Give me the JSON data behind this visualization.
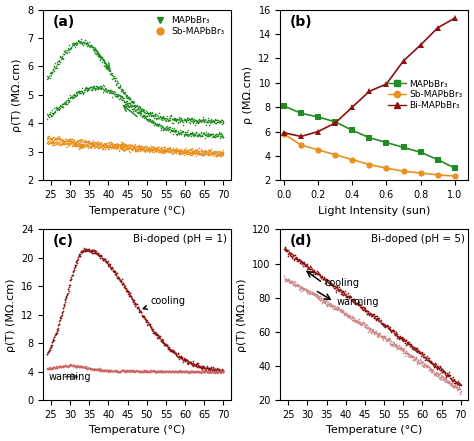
{
  "fig_width": 4.74,
  "fig_height": 4.41,
  "dpi": 100,
  "background": "#ffffff",
  "panel_a": {
    "label": "(a)",
    "xlabel": "Temperature (°C)",
    "ylabel": "ρ(T) (MΩ.cm)",
    "xlim": [
      23,
      72
    ],
    "ylim": [
      2,
      8
    ],
    "yticks": [
      2,
      3,
      4,
      5,
      6,
      7,
      8
    ],
    "xticks": [
      25,
      30,
      35,
      40,
      45,
      50,
      55,
      60,
      65,
      70
    ],
    "green_color": "#228B22",
    "orange_color": "#E89020",
    "legend_labels": [
      "MAPbBr₃",
      "Sb-MAPbBr₃"
    ]
  },
  "panel_b": {
    "label": "(b)",
    "xlabel": "Light Intensity (sun)",
    "ylabel": "ρ (MΩ.cm)",
    "xlim": [
      -0.02,
      1.08
    ],
    "ylim": [
      2,
      16
    ],
    "yticks": [
      2,
      4,
      6,
      8,
      10,
      12,
      14,
      16
    ],
    "xticks": [
      0.0,
      0.2,
      0.4,
      0.6,
      0.8,
      1.0
    ],
    "green_color": "#228B22",
    "orange_color": "#E89020",
    "darkred_color": "#8B1010",
    "legend_labels": [
      "MAPbBr₃",
      "Sb-MAPbBr₃",
      "Bi-MAPbBr₃"
    ],
    "b_green_x": [
      0.0,
      0.1,
      0.2,
      0.3,
      0.4,
      0.5,
      0.6,
      0.7,
      0.8,
      0.9,
      1.0
    ],
    "b_green_y": [
      8.1,
      7.5,
      7.2,
      6.8,
      6.1,
      5.5,
      5.1,
      4.7,
      4.3,
      3.7,
      3.0
    ],
    "b_orange_x": [
      0.0,
      0.1,
      0.2,
      0.3,
      0.4,
      0.5,
      0.6,
      0.7,
      0.8,
      0.9,
      1.0
    ],
    "b_orange_y": [
      5.8,
      4.9,
      4.5,
      4.1,
      3.7,
      3.3,
      3.0,
      2.75,
      2.6,
      2.45,
      2.35
    ],
    "b_red_x": [
      0.0,
      0.1,
      0.2,
      0.3,
      0.4,
      0.5,
      0.6,
      0.7,
      0.8,
      0.9,
      1.0
    ],
    "b_red_y": [
      5.9,
      5.6,
      6.0,
      6.7,
      8.0,
      9.3,
      9.9,
      11.8,
      13.1,
      14.5,
      15.3
    ]
  },
  "panel_c": {
    "label": "(c)",
    "annotation": "Bi-doped (pH = 1)",
    "xlabel": "Temperature (°C)",
    "ylabel": "ρ(T) (MΩ.cm)",
    "xlim": [
      23,
      72
    ],
    "ylim": [
      0,
      24
    ],
    "yticks": [
      0,
      4,
      8,
      12,
      16,
      20,
      24
    ],
    "xticks": [
      25,
      30,
      35,
      40,
      45,
      50,
      55,
      60,
      65,
      70
    ],
    "darkred_color": "#8B1010",
    "lightred_color": "#CC6666"
  },
  "panel_d": {
    "label": "(d)",
    "annotation": "Bi-doped (pH = 5)",
    "xlabel": "Temperature (°C)",
    "ylabel": "ρ(T) (MΩ.cm)",
    "xlim": [
      23,
      72
    ],
    "ylim": [
      20,
      120
    ],
    "yticks": [
      20,
      40,
      60,
      80,
      100,
      120
    ],
    "xticks": [
      25,
      30,
      35,
      40,
      45,
      50,
      55,
      60,
      65,
      70
    ],
    "darkred_color": "#8B1010",
    "lightred_color": "#CC8888"
  }
}
